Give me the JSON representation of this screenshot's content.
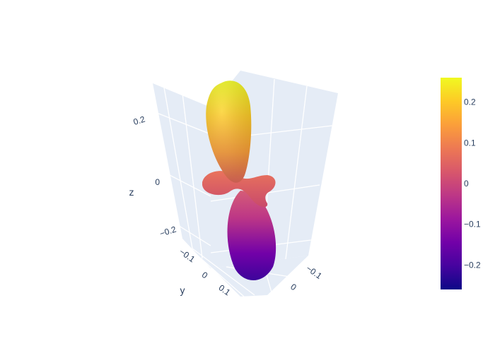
{
  "chart_data": {
    "type": "surface",
    "title": "",
    "colorscale": "plasma",
    "colorscale_stops": [
      "#0d0887",
      "#46039f",
      "#7201a8",
      "#9c179e",
      "#bd3786",
      "#d8576b",
      "#ed7953",
      "#fb9f3a",
      "#fdca26",
      "#f0f921"
    ],
    "background": "#e5ecf6",
    "axes": {
      "x": {
        "title": "",
        "ticks": [
          "−0.1",
          "0"
        ]
      },
      "y": {
        "title": "y",
        "ticks": [
          "−0.1",
          "0",
          "0.1"
        ]
      },
      "z": {
        "title": "z",
        "ticks": [
          "−0.2",
          "0",
          "0.2"
        ]
      }
    },
    "colorbar": {
      "cmin": -0.26,
      "cmax": 0.26,
      "tick_values": [
        0.2,
        0.1,
        0,
        -0.1,
        -0.2
      ],
      "tick_labels": [
        "0.2",
        "0.1",
        "0",
        "−0.1",
        "−0.2"
      ]
    },
    "lobes": [
      {
        "name": "upper",
        "z_min": 0.0,
        "z_max": 0.26
      },
      {
        "name": "lower",
        "z_min": -0.26,
        "z_max": 0.0
      },
      {
        "name": "ring",
        "z": 0.0
      }
    ]
  }
}
